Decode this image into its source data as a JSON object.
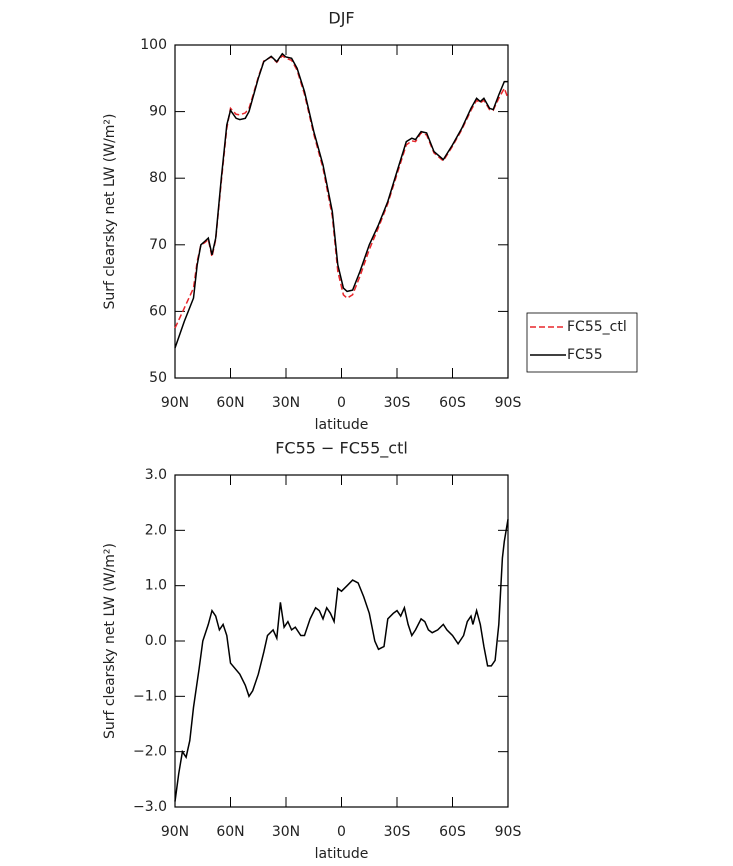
{
  "chart_data": [
    {
      "type": "line",
      "title": "DJF",
      "xlabel": "latitude",
      "ylabel": "Surf clearsky net LW (W/m²)",
      "xlim": [
        90,
        -90
      ],
      "xticks": [
        {
          "value": 90,
          "label": "90N"
        },
        {
          "value": 60,
          "label": "60N"
        },
        {
          "value": 30,
          "label": "30N"
        },
        0,
        {
          "value": -30,
          "label": "30S"
        },
        {
          "value": -60,
          "label": "60S"
        },
        {
          "value": -90,
          "label": "90S"
        }
      ],
      "ylim": [
        50,
        100
      ],
      "yticks": [
        50,
        60,
        70,
        80,
        90,
        100
      ],
      "x": [
        90,
        85,
        80,
        78,
        76,
        74,
        72,
        70,
        68,
        65,
        62,
        60,
        57,
        55,
        52,
        50,
        48,
        45,
        42,
        38,
        35,
        32,
        30,
        27,
        24,
        20,
        15,
        10,
        5,
        2,
        -1,
        -3,
        -6,
        -10,
        -15,
        -20,
        -25,
        -30,
        -35,
        -38,
        -40,
        -43,
        -46,
        -50,
        -55,
        -60,
        -65,
        -70,
        -73,
        -75,
        -77,
        -80,
        -82,
        -85,
        -88,
        -90
      ],
      "series": [
        {
          "name": "FC55_ctl",
          "color": "#e8262b",
          "style": "dashed",
          "values": [
            57.5,
            60.5,
            63.5,
            67.5,
            70,
            70.3,
            70.8,
            68.2,
            70.8,
            79.5,
            87.5,
            90.5,
            89.6,
            89.5,
            89.8,
            90.5,
            92.3,
            95.2,
            97.6,
            98.2,
            97.4,
            98.4,
            98,
            97.7,
            96.2,
            92.6,
            86.6,
            81.5,
            74.3,
            66,
            62.5,
            62,
            62.5,
            65.3,
            69.3,
            72.6,
            76.2,
            80.6,
            85,
            85.6,
            85.5,
            86.8,
            86.5,
            83.8,
            82.6,
            84.8,
            87.3,
            90.2,
            91.7,
            91.3,
            91.7,
            90.3,
            90.2,
            92,
            93.5,
            92
          ]
        },
        {
          "name": "FC55",
          "color": "#000000",
          "style": "solid",
          "values": [
            54.5,
            58.5,
            62,
            67,
            70,
            70.5,
            71,
            68.5,
            71,
            80,
            88,
            90.2,
            89,
            88.8,
            89,
            90,
            92,
            95,
            97.5,
            98.3,
            97.5,
            98.7,
            98.2,
            98,
            96.5,
            93,
            87,
            82,
            75,
            67,
            63.5,
            63,
            63.2,
            66,
            70,
            73,
            76.5,
            81,
            85.5,
            86,
            85.8,
            87,
            86.8,
            84,
            82.8,
            85,
            87.5,
            90.5,
            92,
            91.5,
            92,
            90.5,
            90.3,
            92.5,
            94.5,
            94.5
          ]
        }
      ]
    },
    {
      "type": "line",
      "title": "FC55 − FC55_ctl",
      "xlabel": "latitude",
      "ylabel": "Surf clearsky net LW (W/m²)",
      "xlim": [
        90,
        -90
      ],
      "xticks": [
        {
          "value": 90,
          "label": "90N"
        },
        {
          "value": 60,
          "label": "60N"
        },
        {
          "value": 30,
          "label": "30N"
        },
        0,
        {
          "value": -30,
          "label": "30S"
        },
        {
          "value": -60,
          "label": "60S"
        },
        {
          "value": -90,
          "label": "90S"
        }
      ],
      "ylim": [
        -3,
        3
      ],
      "yticks": [
        {
          "value": -3,
          "label": "−3.0"
        },
        {
          "value": -2,
          "label": "−2.0"
        },
        {
          "value": -1,
          "label": "−1.0"
        },
        {
          "value": 0,
          "label": "0.0"
        },
        {
          "value": 1,
          "label": "1.0"
        },
        {
          "value": 2,
          "label": "2.0"
        },
        {
          "value": 3,
          "label": "3.0"
        }
      ],
      "x": [
        90,
        88,
        86,
        84,
        82,
        80,
        77,
        75,
        72,
        70,
        68,
        66,
        64,
        62,
        60,
        55,
        52,
        50,
        48,
        45,
        42,
        40,
        37,
        35,
        33,
        31,
        29,
        27,
        25,
        22,
        20,
        17,
        14,
        12,
        10,
        8,
        6,
        4,
        2,
        0,
        -3,
        -6,
        -9,
        -12,
        -15,
        -18,
        -20,
        -23,
        -25,
        -28,
        -30,
        -32,
        -34,
        -36,
        -38,
        -40,
        -43,
        -45,
        -47,
        -49,
        -52,
        -55,
        -57,
        -60,
        -63,
        -66,
        -68,
        -70,
        -71,
        -73,
        -75,
        -77,
        -79,
        -81,
        -83,
        -85,
        -87,
        -88,
        -90
      ],
      "series": [
        {
          "name": "FC55",
          "color": "#000000",
          "style": "solid",
          "values": [
            -2.9,
            -2.4,
            -2.0,
            -2.1,
            -1.8,
            -1.2,
            -0.5,
            0.0,
            0.3,
            0.55,
            0.45,
            0.2,
            0.3,
            0.1,
            -0.4,
            -0.6,
            -0.8,
            -1.0,
            -0.9,
            -0.6,
            -0.2,
            0.1,
            0.2,
            0.05,
            0.7,
            0.25,
            0.35,
            0.2,
            0.25,
            0.1,
            0.1,
            0.4,
            0.6,
            0.55,
            0.4,
            0.6,
            0.5,
            0.35,
            0.95,
            0.9,
            1.0,
            1.1,
            1.05,
            0.8,
            0.5,
            0.0,
            -0.15,
            -0.1,
            0.4,
            0.5,
            0.55,
            0.45,
            0.6,
            0.3,
            0.1,
            0.2,
            0.4,
            0.35,
            0.2,
            0.15,
            0.2,
            0.3,
            0.2,
            0.1,
            -0.05,
            0.1,
            0.35,
            0.45,
            0.3,
            0.55,
            0.3,
            -0.1,
            -0.45,
            -0.45,
            -0.35,
            0.3,
            1.5,
            1.8,
            2.2
          ]
        }
      ]
    }
  ]
}
